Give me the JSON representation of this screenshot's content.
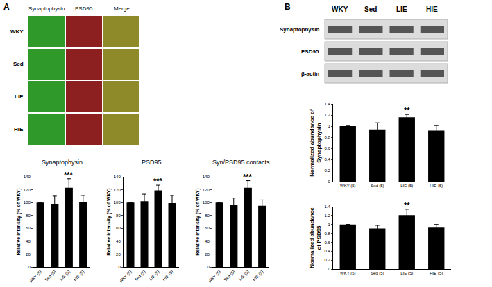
{
  "panels": [
    {
      "label": "A",
      "images": {
        "columns": [
          "Synaptophysin",
          "PSD95",
          "Merge"
        ],
        "rows": [
          "WKY",
          "Sed",
          "LIE",
          "HIE"
        ]
      }
    },
    {
      "label": "B",
      "blot": {
        "lanes": [
          "WKY",
          "Sed",
          "LIE",
          "HIE"
        ],
        "bands": [
          "Synaptophysin",
          "PSD95",
          "β-actin"
        ]
      }
    }
  ],
  "chart_data": [
    {
      "type": "bar",
      "title": "Synaptophysin",
      "ylabel": "Relative intensity (% of WKY)",
      "categories": [
        "WKY (5)",
        "Sed (5)",
        "LIE (5)",
        "HIE (5)"
      ],
      "values": [
        100,
        98,
        123,
        101
      ],
      "errors": [
        0,
        12,
        14,
        10
      ],
      "color": "#000000",
      "ylim": [
        0,
        140
      ],
      "yticks": [
        0,
        20,
        40,
        60,
        80,
        100,
        120,
        140
      ],
      "grid": false,
      "annotations": [
        {
          "x": "LIE (5)",
          "text": "***"
        }
      ]
    },
    {
      "type": "bar",
      "title": "PSD95",
      "ylabel": "Relative intensity (% of WKY)",
      "categories": [
        "WKY (5)",
        "Sed (5)",
        "LIE (5)",
        "HIE (5)"
      ],
      "values": [
        100,
        102,
        119,
        99
      ],
      "errors": [
        0,
        11,
        8,
        12
      ],
      "color": "#000000",
      "ylim": [
        0,
        140
      ],
      "yticks": [
        0,
        20,
        40,
        60,
        80,
        100,
        120,
        140
      ],
      "grid": false,
      "annotations": [
        {
          "x": "LIE (5)",
          "text": "***"
        }
      ]
    },
    {
      "type": "bar",
      "title": "Syn/PSD95 contacts",
      "ylabel": "Relative intensity (% of WKY)",
      "categories": [
        "WKY (5)",
        "Sed (5)",
        "LIE (5)",
        "HIE (5)"
      ],
      "values": [
        100,
        97,
        123,
        95
      ],
      "errors": [
        0,
        10,
        11,
        9
      ],
      "color": "#000000",
      "ylim": [
        0,
        140
      ],
      "yticks": [
        0,
        20,
        40,
        60,
        80,
        100,
        120,
        140
      ],
      "grid": false,
      "annotations": [
        {
          "x": "LIE (5)",
          "text": "***"
        }
      ]
    },
    {
      "type": "bar",
      "ylabel": "Normalized abundance of Synaptophysin",
      "categories": [
        "WKY (5)",
        "Sed (5)",
        "LIE (5)",
        "HIE (5)"
      ],
      "values": [
        1,
        0.94,
        1.16,
        0.92
      ],
      "errors": [
        0,
        0.12,
        0.05,
        0.09
      ],
      "color": "#000000",
      "ylim": [
        0,
        1.4
      ],
      "yticks": [
        0,
        0.2,
        0.4,
        0.6,
        0.8,
        1,
        1.2,
        1.4
      ],
      "grid": false,
      "annotations": [
        {
          "x": "LIE (5)",
          "text": "**"
        }
      ]
    },
    {
      "type": "bar",
      "ylabel": "Normalized abundance of PSD95",
      "categories": [
        "WKY (5)",
        "Sed (5)",
        "LIE (5)",
        "HIE (5)"
      ],
      "values": [
        1,
        0.91,
        1.21,
        0.93
      ],
      "errors": [
        0,
        0.07,
        0.13,
        0.07
      ],
      "color": "#000000",
      "ylim": [
        0,
        1.4
      ],
      "yticks": [
        0,
        0.2,
        0.4,
        0.6,
        0.8,
        1,
        1.2,
        1.4
      ],
      "grid": false,
      "annotations": [
        {
          "x": "LIE (5)",
          "text": "**"
        }
      ]
    }
  ]
}
